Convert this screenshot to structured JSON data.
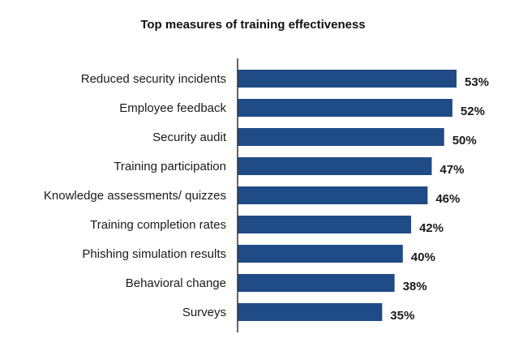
{
  "chart_data": {
    "type": "bar",
    "orientation": "horizontal",
    "title": "Top measures of training effectiveness",
    "xlabel": "",
    "ylabel": "",
    "xlim": [
      0,
      60
    ],
    "grid": false,
    "legend": "none",
    "bar_color": "#1f4b87",
    "categories": [
      "Reduced security incidents",
      "Employee feedback",
      "Security audit",
      "Training participation",
      "Knowledge assessments/ quizzes",
      "Training completion rates",
      "Phishing simulation results",
      "Behavioral change",
      "Surveys"
    ],
    "values": [
      53,
      52,
      50,
      47,
      46,
      42,
      40,
      38,
      35
    ],
    "value_labels": [
      "53%",
      "52%",
      "50%",
      "47%",
      "46%",
      "42%",
      "40%",
      "38%",
      "35%"
    ]
  }
}
